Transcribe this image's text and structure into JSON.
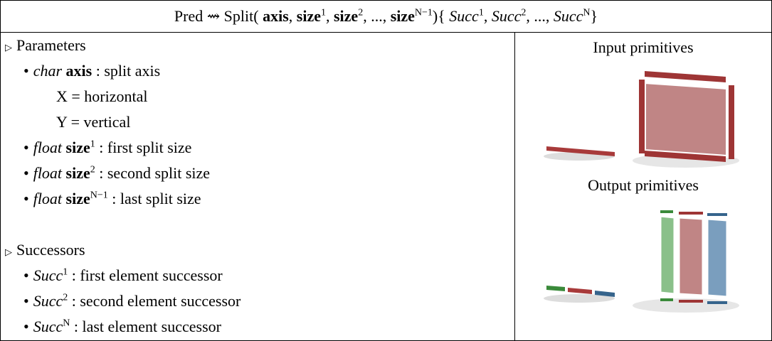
{
  "header": [
    "Pred ⇝ Split(",
    "axis",
    ",",
    "size",
    "1",
    ",",
    "size",
    "2",
    ", ...,",
    "size",
    "N−1",
    "){",
    "Succ",
    "1",
    ",",
    "Succ",
    "2",
    ", ...,",
    "Succ",
    "N",
    "}"
  ],
  "parameters": {
    "heading": "Parameters",
    "items": [
      {
        "type": "char",
        "name": "axis",
        "desc": ": split axis",
        "options": [
          "X = horizontal",
          "Y = vertical"
        ]
      },
      {
        "type": "float",
        "name": "size",
        "sup": "1",
        "desc": ": first split size"
      },
      {
        "type": "float",
        "name": "size",
        "sup": "2",
        "desc": ": second split size"
      },
      {
        "type": "float",
        "name": "size",
        "sup": "N−1",
        "desc": ": last split size"
      }
    ]
  },
  "successors": {
    "heading": "Successors",
    "items": [
      {
        "name": "Succ",
        "sup": "1",
        "desc": ": first element successor"
      },
      {
        "name": "Succ",
        "sup": "2",
        "desc": ": second element successor"
      },
      {
        "name": "Succ",
        "sup": "N",
        "desc": ": last element successor"
      }
    ]
  },
  "figure": {
    "input_label": "Input primitives",
    "output_label": "Output primitives"
  }
}
